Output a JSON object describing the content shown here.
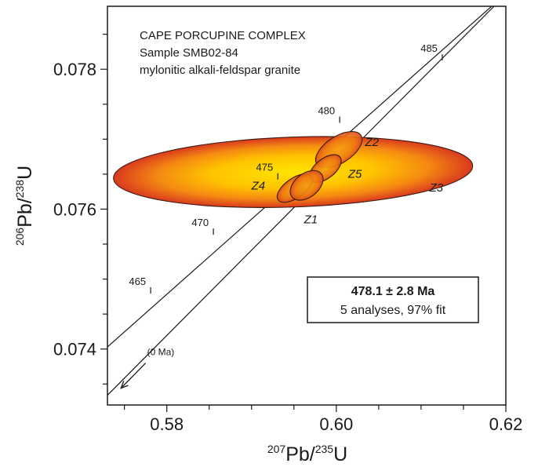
{
  "chart_data": {
    "type": "scatter",
    "title_lines": [
      "CAPE PORCUPINE COMPLEX",
      "Sample SMB02-84",
      "mylonitic alkali-feldspar granite"
    ],
    "xlabel": {
      "sup": "207",
      "base": "Pb/",
      "sup2": "235",
      "end": "U"
    },
    "ylabel": {
      "sup": "206",
      "base": "Pb/",
      "sup2": "238",
      "end": "U"
    },
    "xlim": [
      0.573,
      0.62
    ],
    "ylim": [
      0.0732,
      0.0789
    ],
    "x_ticks": [
      0.58,
      0.6,
      0.62
    ],
    "x_tick_labels": [
      "0.58",
      "0.60",
      "0.62"
    ],
    "y_ticks": [
      0.074,
      0.076,
      0.078
    ],
    "y_tick_labels": [
      "0.074",
      "0.076",
      "0.078"
    ],
    "concordia_ages": [
      {
        "label": "465",
        "x": 0.5781,
        "y": 0.07485
      },
      {
        "label": "470",
        "x": 0.5855,
        "y": 0.07569
      },
      {
        "label": "475",
        "x": 0.5931,
        "y": 0.07648
      },
      {
        "label": "480",
        "x": 0.6004,
        "y": 0.07729
      },
      {
        "label": "485",
        "x": 0.6125,
        "y": 0.07818
      }
    ],
    "ellipses": [
      {
        "name": "Z3",
        "cx": 0.5949,
        "cy": 0.07653,
        "rx": 0.0212,
        "ry": 0.0005,
        "rot_deg": -2,
        "fill": "large",
        "label_x": 0.6118,
        "label_y": 0.07625
      },
      {
        "name": "Z2",
        "cx": 0.6003,
        "cy": 0.07685,
        "rx": 0.0031,
        "ry": 0.00019,
        "rot_deg": -33,
        "fill": "small",
        "label_x": 0.6042,
        "label_y": 0.0769
      },
      {
        "name": "Z5",
        "cx": 0.5987,
        "cy": 0.07658,
        "rx": 0.0022,
        "ry": 0.00014,
        "rot_deg": -38,
        "fill": "small",
        "label_x": 0.6022,
        "label_y": 0.07645
      },
      {
        "name": "Z4",
        "cx": 0.5951,
        "cy": 0.0763,
        "rx": 0.0024,
        "ry": 0.00014,
        "rot_deg": -35,
        "fill": "small",
        "label_x": 0.5908,
        "label_y": 0.07628
      },
      {
        "name": "Z1",
        "cx": 0.5965,
        "cy": 0.07634,
        "rx": 0.0022,
        "ry": 0.00017,
        "rot_deg": -38,
        "fill": "small",
        "label_x": 0.597,
        "label_y": 0.0758
      }
    ],
    "concordia_lines": [
      {
        "x1": 0.573,
        "y1": 0.07403,
        "x2": 0.62,
        "y2": 0.07908
      },
      {
        "x1": 0.573,
        "y1": 0.07334,
        "x2": 0.62,
        "y2": 0.07907
      }
    ],
    "zero_arrow": {
      "label": "(0 Ma)",
      "from_x": 0.5775,
      "from_y": 0.0738,
      "to_x": 0.5746,
      "to_y": 0.07344
    },
    "result": {
      "age": "478.1 ± 2.8 Ma",
      "note": "5 analyses, 97% fit"
    },
    "colors": {
      "outer": "#d93a1e",
      "inner": "#ffe400",
      "stroke": "#3b1a10",
      "line": "#1a1a1a"
    }
  }
}
